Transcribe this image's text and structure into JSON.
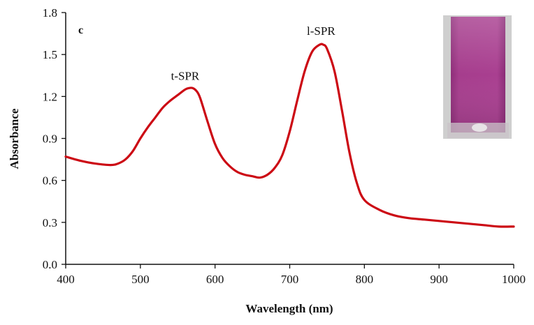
{
  "chart_data": {
    "type": "line",
    "panel_label": "c",
    "xlabel": "Wavelength (nm)",
    "ylabel": "Absorbance",
    "xlim": [
      400,
      1000
    ],
    "ylim": [
      0,
      1.8
    ],
    "x_ticks": [
      400,
      500,
      600,
      700,
      800,
      900,
      1000
    ],
    "y_ticks": [
      0.0,
      0.3,
      0.6,
      0.9,
      1.2,
      1.5,
      1.8
    ],
    "x_tick_labels": [
      "400",
      "500",
      "600",
      "700",
      "800",
      "900",
      "1000"
    ],
    "y_tick_labels": [
      "0.0",
      "0.3",
      "0.6",
      "0.9",
      "1.2",
      "1.5",
      "1.8"
    ],
    "grid": false,
    "legend": "none",
    "series": [
      {
        "color": "#cc0a14",
        "x": [
          400,
          420,
          440,
          460,
          470,
          480,
          490,
          500,
          510,
          520,
          530,
          540,
          550,
          560,
          565,
          570,
          575,
          580,
          590,
          600,
          610,
          620,
          630,
          640,
          650,
          660,
          670,
          680,
          690,
          700,
          710,
          720,
          730,
          740,
          745,
          750,
          760,
          770,
          780,
          790,
          800,
          820,
          840,
          860,
          880,
          900,
          920,
          940,
          960,
          980,
          1000
        ],
        "y": [
          0.77,
          0.74,
          0.72,
          0.71,
          0.72,
          0.75,
          0.81,
          0.9,
          0.98,
          1.05,
          1.12,
          1.17,
          1.21,
          1.25,
          1.26,
          1.26,
          1.24,
          1.19,
          1.02,
          0.86,
          0.76,
          0.7,
          0.66,
          0.64,
          0.63,
          0.62,
          0.64,
          0.69,
          0.78,
          0.95,
          1.17,
          1.38,
          1.52,
          1.57,
          1.57,
          1.54,
          1.38,
          1.1,
          0.8,
          0.58,
          0.46,
          0.39,
          0.35,
          0.33,
          0.32,
          0.31,
          0.3,
          0.29,
          0.28,
          0.27,
          0.27
        ]
      }
    ],
    "annotations": [
      {
        "text": "t-SPR",
        "x": 560,
        "y": 1.32
      },
      {
        "text": "l-SPR",
        "x": 742,
        "y": 1.64
      }
    ],
    "inset": {
      "description_icon": "purple-cuvette-photo",
      "fill_color": "#a63d8d",
      "frame_color": "#b9b9b9"
    }
  }
}
